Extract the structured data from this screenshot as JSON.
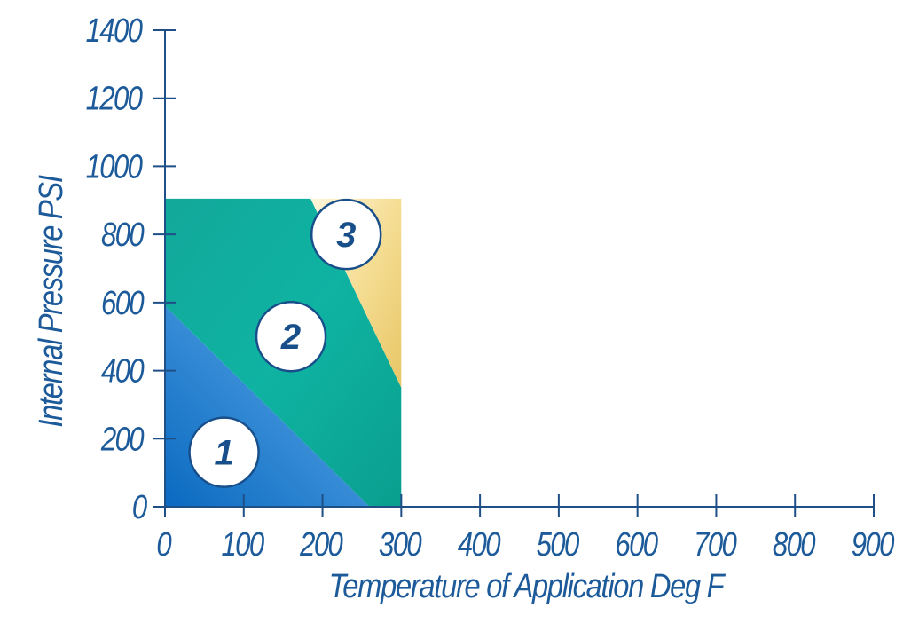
{
  "chart_data": {
    "type": "area",
    "xlabel": "Temperature of Application Deg F",
    "ylabel": "Internal Pressure PSI",
    "xlim": [
      0,
      900
    ],
    "ylim": [
      0,
      1400
    ],
    "x_ticks": [
      0,
      100,
      200,
      300,
      400,
      500,
      600,
      700,
      800,
      900
    ],
    "y_ticks": [
      0,
      200,
      400,
      600,
      800,
      1000,
      1200,
      1400
    ],
    "grid": false,
    "legend": "none",
    "colors": {
      "axis": "#1f4f87",
      "label_text": "#1c5a9a",
      "zone_1": "#1f7fd0",
      "zone_2": "#0fae9e",
      "zone_3": "#e8cf7a",
      "circle_text": "#184f8a"
    },
    "zones": [
      {
        "label": "1",
        "polygon": [
          [
            0,
            0
          ],
          [
            0,
            590
          ],
          [
            260,
            0
          ]
        ],
        "marker": [
          75,
          160
        ]
      },
      {
        "label": "2",
        "polygon": [
          [
            0,
            590
          ],
          [
            0,
            905
          ],
          [
            185,
            905
          ],
          [
            300,
            350
          ],
          [
            300,
            0
          ],
          [
            260,
            0
          ]
        ],
        "marker": [
          160,
          500
        ]
      },
      {
        "label": "3",
        "polygon": [
          [
            185,
            905
          ],
          [
            300,
            905
          ],
          [
            300,
            350
          ]
        ],
        "marker": [
          230,
          800
        ]
      }
    ]
  }
}
